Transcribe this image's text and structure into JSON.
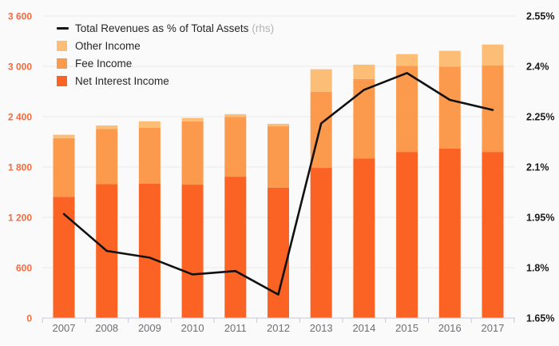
{
  "legend": {
    "line_label": "Total Revenues as % of Total Assets",
    "line_suffix": "(rhs)",
    "items": [
      "Other Income",
      "Fee Income",
      "Net Interest Income"
    ]
  },
  "colors": {
    "background": "#FAFAFA",
    "gridline": "#E9E9E9",
    "axis": "#C4CADF",
    "left_label": "#F5693C",
    "right_label": "#1A1A1A",
    "x_label": "#6F6F73",
    "line": "#111111"
  },
  "chart_data": {
    "type": "bar",
    "subtype": "stacked-bar-with-line",
    "categories": [
      "2007",
      "2008",
      "2009",
      "2010",
      "2011",
      "2012",
      "2013",
      "2014",
      "2015",
      "2016",
      "2017"
    ],
    "bar_series": [
      {
        "name": "Net Interest Income",
        "color": "#FA6324",
        "values": [
          1445,
          1595,
          1600,
          1590,
          1685,
          1555,
          1790,
          1900,
          1980,
          2020,
          1980
        ]
      },
      {
        "name": "Fee Income",
        "color": "#FB9A4C",
        "values": [
          700,
          660,
          670,
          755,
          710,
          730,
          905,
          950,
          1025,
          975,
          1030
        ]
      },
      {
        "name": "Other Income",
        "color": "#FCBE76",
        "values": [
          40,
          40,
          75,
          40,
          35,
          30,
          270,
          170,
          140,
          190,
          250
        ]
      }
    ],
    "line_series": {
      "name": "Total Revenues as % of Total Assets",
      "axis": "rhs",
      "color": "#111111",
      "values": [
        1.96,
        1.85,
        1.83,
        1.78,
        1.79,
        1.72,
        2.23,
        2.33,
        2.38,
        2.3,
        2.27
      ]
    },
    "left_axis": {
      "min": 0,
      "max": 3600,
      "tick_values": [
        0,
        600,
        1200,
        1800,
        2400,
        3000,
        3600
      ],
      "tick_labels": [
        "0",
        "600",
        "1 200",
        "1 800",
        "2 400",
        "3 000",
        "3 600"
      ]
    },
    "right_axis": {
      "min": 1.65,
      "max": 2.55,
      "tick_values": [
        1.65,
        1.8,
        1.95,
        2.1,
        2.25,
        2.4,
        2.55
      ],
      "tick_labels": [
        "1.65%",
        "1.8%",
        "1.95%",
        "2.1%",
        "2.25%",
        "2.4%",
        "2.55%"
      ]
    },
    "grid": true,
    "legend_position": "top-left"
  }
}
